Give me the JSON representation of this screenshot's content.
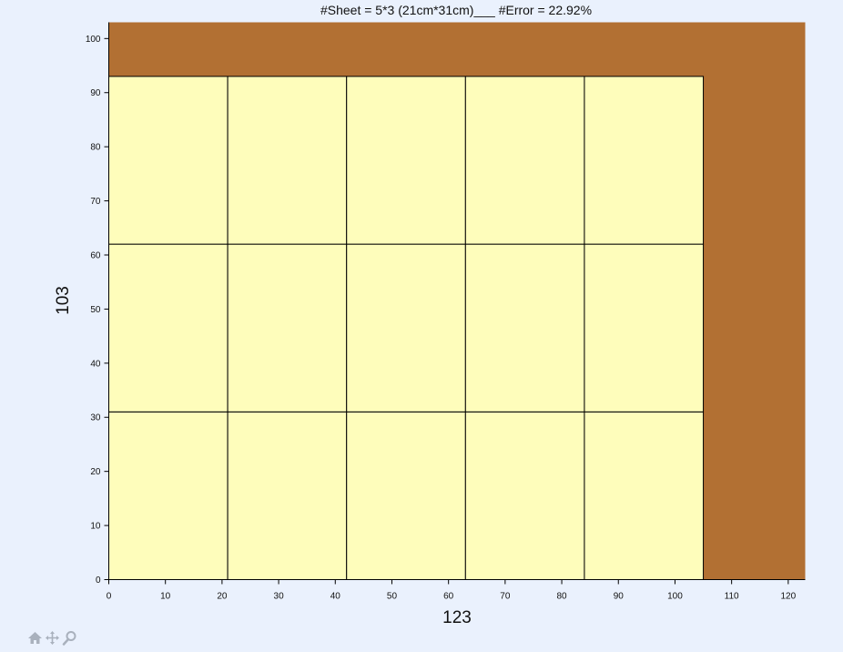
{
  "chart_data": {
    "type": "heatmap",
    "title": "#Sheet = 5*3 (21cm*31cm)___ #Error = 22.92%",
    "xlabel": "123",
    "ylabel": "103",
    "xlim": [
      0,
      123
    ],
    "ylim": [
      0,
      103
    ],
    "x_ticks": [
      0,
      10,
      20,
      30,
      40,
      50,
      60,
      70,
      80,
      90,
      100,
      110,
      120
    ],
    "y_ticks": [
      0,
      10,
      20,
      30,
      40,
      50,
      60,
      70,
      80,
      90,
      100
    ],
    "board": {
      "width": 123,
      "height": 103,
      "color": "#b27033"
    },
    "sheet": {
      "width": 21,
      "height": 31,
      "color": "#fefdbb",
      "cols": 5,
      "rows": 3
    },
    "sheets": [
      [
        0,
        0,
        21,
        31
      ],
      [
        21,
        0,
        21,
        31
      ],
      [
        42,
        0,
        21,
        31
      ],
      [
        63,
        0,
        21,
        31
      ],
      [
        84,
        0,
        21,
        31
      ],
      [
        0,
        31,
        21,
        31
      ],
      [
        21,
        31,
        21,
        31
      ],
      [
        42,
        31,
        21,
        31
      ],
      [
        63,
        31,
        21,
        31
      ],
      [
        84,
        31,
        21,
        31
      ],
      [
        0,
        62,
        21,
        31
      ],
      [
        21,
        62,
        21,
        31
      ],
      [
        42,
        62,
        21,
        31
      ],
      [
        63,
        62,
        21,
        31
      ],
      [
        84,
        62,
        21,
        31
      ]
    ],
    "grid": false,
    "error_percent": 22.92
  },
  "toolbar": {
    "items": [
      {
        "name": "home-icon"
      },
      {
        "name": "pan-icon"
      },
      {
        "name": "zoom-icon"
      }
    ]
  }
}
